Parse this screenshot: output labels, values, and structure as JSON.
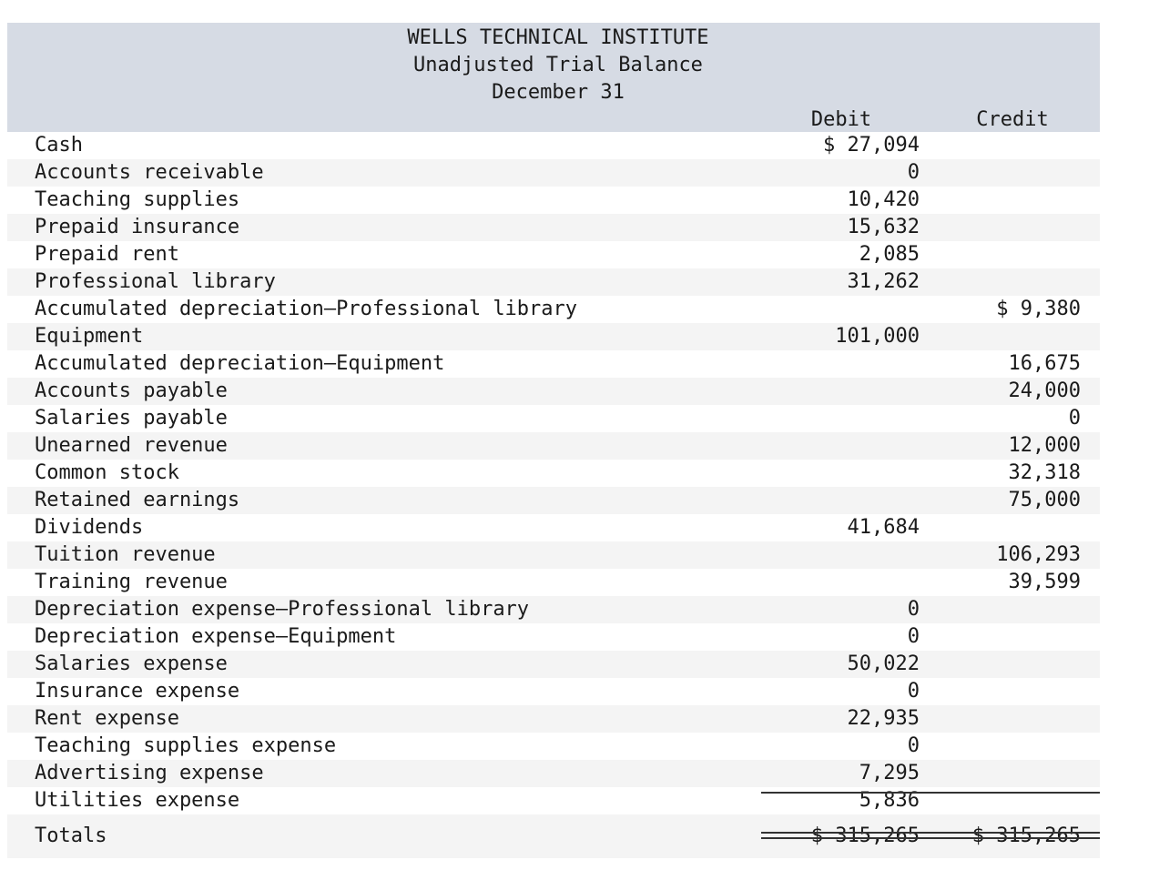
{
  "header": {
    "company": "WELLS TECHNICAL INSTITUTE",
    "report": "Unadjusted Trial Balance",
    "date": "December 31",
    "debit_label": "Debit",
    "credit_label": "Credit"
  },
  "rows": [
    {
      "account": "Cash",
      "debit": "$ 27,094",
      "credit": ""
    },
    {
      "account": "Accounts receivable",
      "debit": "0",
      "credit": ""
    },
    {
      "account": "Teaching supplies",
      "debit": "10,420",
      "credit": ""
    },
    {
      "account": "Prepaid insurance",
      "debit": "15,632",
      "credit": ""
    },
    {
      "account": "Prepaid rent",
      "debit": "2,085",
      "credit": ""
    },
    {
      "account": "Professional library",
      "debit": "31,262",
      "credit": ""
    },
    {
      "account": "Accumulated depreciation—Professional library",
      "debit": "",
      "credit": "$ 9,380"
    },
    {
      "account": "Equipment",
      "debit": "101,000",
      "credit": ""
    },
    {
      "account": "Accumulated depreciation—Equipment",
      "debit": "",
      "credit": "16,675"
    },
    {
      "account": "Accounts payable",
      "debit": "",
      "credit": "24,000"
    },
    {
      "account": "Salaries payable",
      "debit": "",
      "credit": "0"
    },
    {
      "account": "Unearned revenue",
      "debit": "",
      "credit": "12,000"
    },
    {
      "account": "Common stock",
      "debit": "",
      "credit": "32,318"
    },
    {
      "account": "Retained earnings",
      "debit": "",
      "credit": "75,000"
    },
    {
      "account": "Dividends",
      "debit": "41,684",
      "credit": ""
    },
    {
      "account": "Tuition revenue",
      "debit": "",
      "credit": "106,293"
    },
    {
      "account": "Training revenue",
      "debit": "",
      "credit": "39,599"
    },
    {
      "account": "Depreciation expense—Professional library",
      "debit": "0",
      "credit": ""
    },
    {
      "account": "Depreciation expense—Equipment",
      "debit": "0",
      "credit": ""
    },
    {
      "account": "Salaries expense",
      "debit": "50,022",
      "credit": ""
    },
    {
      "account": "Insurance expense",
      "debit": "0",
      "credit": ""
    },
    {
      "account": "Rent expense",
      "debit": "22,935",
      "credit": ""
    },
    {
      "account": "Teaching supplies expense",
      "debit": "0",
      "credit": ""
    },
    {
      "account": "Advertising expense",
      "debit": "7,295",
      "credit": ""
    },
    {
      "account": "Utilities expense",
      "debit": "5,836",
      "credit": ""
    }
  ],
  "totals": {
    "label": "Totals",
    "debit": "$ 315,265",
    "credit": "$ 315,265"
  }
}
